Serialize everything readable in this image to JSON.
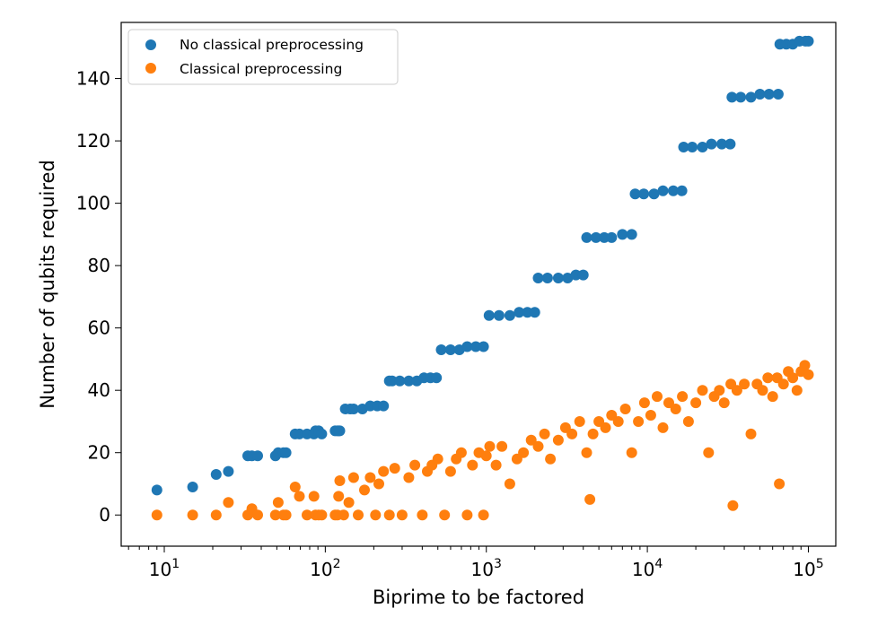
{
  "chart_data": {
    "type": "scatter",
    "title": "",
    "xlabel": "Biprime to be factored",
    "ylabel": "Number of qubits required",
    "xscale": "log",
    "xlim": [
      5.4,
      148000
    ],
    "ylim": [
      -10,
      158
    ],
    "xticks": [
      {
        "value": 10,
        "base": "10",
        "exp": "1"
      },
      {
        "value": 100,
        "base": "10",
        "exp": "2"
      },
      {
        "value": 1000,
        "base": "10",
        "exp": "3"
      },
      {
        "value": 10000,
        "base": "10",
        "exp": "4"
      },
      {
        "value": 100000,
        "base": "10",
        "exp": "5"
      }
    ],
    "yticks": [
      0,
      20,
      40,
      60,
      80,
      100,
      120,
      140
    ],
    "grid": false,
    "legend_position": "top-left",
    "series": [
      {
        "name": "No classical preprocessing",
        "color": "#1f77b4",
        "x": [
          9,
          15,
          21,
          25,
          33,
          35,
          38,
          49,
          51,
          55,
          57,
          65,
          69,
          77,
          85,
          87,
          91,
          95,
          115,
          119,
          121,
          123,
          133,
          143,
          150,
          170,
          190,
          210,
          230,
          250,
          260,
          290,
          330,
          370,
          410,
          450,
          490,
          525,
          600,
          680,
          760,
          860,
          960,
          1040,
          1200,
          1400,
          1600,
          1800,
          2000,
          2100,
          2400,
          2800,
          3200,
          3600,
          4000,
          4200,
          4800,
          5400,
          6000,
          7000,
          8000,
          8400,
          9500,
          11000,
          12500,
          14500,
          16400,
          16800,
          19000,
          22000,
          25000,
          29000,
          32700,
          33500,
          38000,
          44000,
          50000,
          57000,
          65000,
          66500,
          73000,
          80000,
          88000,
          96000,
          100000
        ],
        "y": [
          8,
          9,
          13,
          14,
          19,
          19,
          19,
          19,
          20,
          20,
          20,
          26,
          26,
          26,
          26,
          27,
          27,
          26,
          27,
          27,
          27,
          27,
          34,
          34,
          34,
          34,
          35,
          35,
          35,
          43,
          43,
          43,
          43,
          43,
          44,
          44,
          44,
          53,
          53,
          53,
          54,
          54,
          54,
          64,
          64,
          64,
          65,
          65,
          65,
          76,
          76,
          76,
          76,
          77,
          77,
          89,
          89,
          89,
          89,
          90,
          90,
          103,
          103,
          103,
          104,
          104,
          104,
          118,
          118,
          118,
          119,
          119,
          119,
          134,
          134,
          134,
          135,
          135,
          135,
          151,
          151,
          151,
          152,
          152,
          152
        ]
      },
      {
        "name": "Classical preprocessing",
        "color": "#ff7f0e",
        "x": [
          9,
          15,
          21,
          25,
          33,
          35,
          38,
          49,
          51,
          55,
          57,
          65,
          69,
          77,
          85,
          87,
          91,
          95,
          115,
          119,
          121,
          123,
          130,
          140,
          150,
          160,
          175,
          190,
          205,
          215,
          230,
          250,
          270,
          300,
          330,
          360,
          400,
          430,
          460,
          500,
          550,
          600,
          650,
          700,
          760,
          820,
          900,
          960,
          1000,
          1050,
          1150,
          1250,
          1400,
          1550,
          1700,
          1900,
          2100,
          2300,
          2500,
          2800,
          3100,
          3400,
          3800,
          4200,
          4400,
          4600,
          5000,
          5500,
          6000,
          6600,
          7300,
          8000,
          8800,
          9600,
          10500,
          11500,
          12500,
          13600,
          15000,
          16500,
          18000,
          20000,
          22000,
          24000,
          26000,
          28000,
          30000,
          33000,
          34000,
          36000,
          40000,
          44000,
          48000,
          52000,
          56000,
          60000,
          64000,
          66000,
          70000,
          75000,
          80000,
          85000,
          90000,
          95000,
          100000
        ],
        "y": [
          0,
          0,
          0,
          4,
          0,
          2,
          0,
          0,
          4,
          0,
          0,
          9,
          6,
          0,
          6,
          0,
          0,
          0,
          0,
          0,
          6,
          11,
          0,
          4,
          12,
          0,
          8,
          12,
          0,
          10,
          14,
          0,
          15,
          0,
          12,
          16,
          0,
          14,
          16,
          18,
          0,
          14,
          18,
          20,
          0,
          16,
          20,
          0,
          19,
          22,
          16,
          22,
          10,
          18,
          20,
          24,
          22,
          26,
          18,
          24,
          28,
          26,
          30,
          20,
          5,
          26,
          30,
          28,
          32,
          30,
          34,
          20,
          30,
          36,
          32,
          38,
          28,
          36,
          34,
          38,
          30,
          36,
          40,
          20,
          38,
          40,
          36,
          42,
          3,
          40,
          42,
          26,
          42,
          40,
          44,
          38,
          44,
          10,
          42,
          46,
          44,
          40,
          46,
          48,
          45
        ]
      }
    ]
  }
}
